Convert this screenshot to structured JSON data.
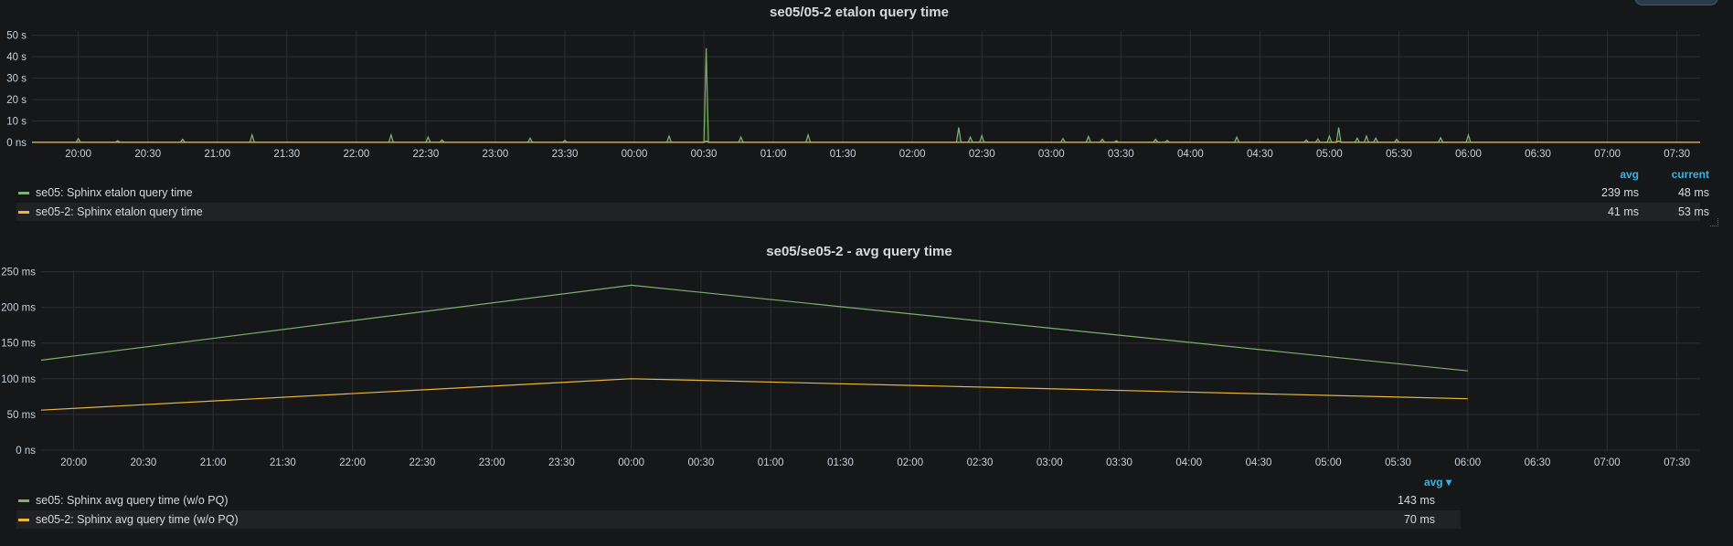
{
  "colors": {
    "series_green": "#7eb26d",
    "series_yellow": "#eab839",
    "grid": "#2c2e31",
    "axis_text": "#c7d0d9",
    "legend_header": "#33b5e5"
  },
  "panel1": {
    "title": "se05/05-2 etalon query time",
    "legend": {
      "headers": {
        "avg": "avg",
        "current": "current"
      },
      "rows": [
        {
          "label": "se05: Sphinx etalon query time",
          "avg": "239 ms",
          "current": "48 ms"
        },
        {
          "label": "se05-2: Sphinx etalon query time",
          "avg": "41 ms",
          "current": "53 ms"
        }
      ]
    }
  },
  "panel2": {
    "title": "se05/se05-2 - avg query time",
    "legend": {
      "headers": {
        "avg": "avg ▾"
      },
      "rows": [
        {
          "label": "se05: Sphinx avg query time (w/o PQ)",
          "avg": "143 ms"
        },
        {
          "label": "se05-2: Sphinx avg query time (w/o PQ)",
          "avg": "70 ms"
        }
      ]
    }
  },
  "chart_data": [
    {
      "type": "line",
      "title": "se05/05-2 etalon query time",
      "x_ticks": [
        "20:00",
        "20:30",
        "21:00",
        "21:30",
        "22:00",
        "22:30",
        "23:00",
        "23:30",
        "00:00",
        "00:30",
        "01:00",
        "01:30",
        "02:00",
        "02:30",
        "03:00",
        "03:30",
        "04:00",
        "04:30",
        "05:00",
        "05:30",
        "06:00",
        "06:30",
        "07:00",
        "07:30"
      ],
      "y_ticks": [
        "0 ns",
        "10 s",
        "20 s",
        "30 s",
        "40 s",
        "50 s"
      ],
      "xlim": [
        "19:40",
        "07:40"
      ],
      "ylim": [
        0,
        52
      ],
      "yunit": "s",
      "grid": true,
      "series": [
        {
          "name": "se05: Sphinx etalon query time",
          "color": "#7eb26d",
          "spikes": [
            [
              "20:00",
              1.8
            ],
            [
              "20:17",
              0.8
            ],
            [
              "20:45",
              1.5
            ],
            [
              "21:15",
              3.5
            ],
            [
              "22:15",
              3.5
            ],
            [
              "22:31",
              2.5
            ],
            [
              "22:37",
              1.2
            ],
            [
              "23:15",
              2.0
            ],
            [
              "23:30",
              1.0
            ],
            [
              "00:15",
              3.0
            ],
            [
              "00:31",
              44
            ],
            [
              "00:46",
              2.5
            ],
            [
              "01:15",
              3.5
            ],
            [
              "02:20",
              7.0
            ],
            [
              "02:25",
              2.5
            ],
            [
              "02:30",
              3.2
            ],
            [
              "03:05",
              1.8
            ],
            [
              "03:16",
              2.8
            ],
            [
              "03:22",
              1.5
            ],
            [
              "03:28",
              0.8
            ],
            [
              "03:45",
              1.5
            ],
            [
              "03:50",
              1.0
            ],
            [
              "04:20",
              2.5
            ],
            [
              "04:50",
              1.2
            ],
            [
              "04:55",
              1.6
            ],
            [
              "05:00",
              3.0
            ],
            [
              "05:04",
              7.0
            ],
            [
              "05:12",
              2.0
            ],
            [
              "05:16",
              3.0
            ],
            [
              "05:20",
              2.0
            ],
            [
              "05:29",
              1.5
            ],
            [
              "05:48",
              2.2
            ],
            [
              "06:00",
              3.5
            ]
          ]
        },
        {
          "name": "se05-2: Sphinx etalon query time",
          "color": "#eab839",
          "spikes": [
            [
              "00:31",
              0.6
            ],
            [
              "05:04",
              0.7
            ]
          ]
        }
      ]
    },
    {
      "type": "line",
      "title": "se05/se05-2 - avg query time",
      "x_ticks": [
        "20:00",
        "20:30",
        "21:00",
        "21:30",
        "22:00",
        "22:30",
        "23:00",
        "23:30",
        "00:00",
        "00:30",
        "01:00",
        "01:30",
        "02:00",
        "02:30",
        "03:00",
        "03:30",
        "04:00",
        "04:30",
        "05:00",
        "05:30",
        "06:00",
        "06:30",
        "07:00",
        "07:30"
      ],
      "y_ticks": [
        "0 ns",
        "50 ms",
        "100 ms",
        "150 ms",
        "200 ms",
        "250 ms"
      ],
      "xlim": [
        "19:46",
        "07:40"
      ],
      "ylim": [
        0,
        252
      ],
      "yunit": "ms",
      "grid": true,
      "series": [
        {
          "name": "se05: Sphinx avg query time (w/o PQ)",
          "color": "#7eb26d",
          "x": [
            "19:46",
            "00:00",
            "06:00"
          ],
          "y": [
            126,
            231,
            111
          ]
        },
        {
          "name": "se05-2: Sphinx avg query time (w/o PQ)",
          "color": "#eab839",
          "x": [
            "19:46",
            "00:00",
            "06:00"
          ],
          "y": [
            56,
            100,
            72
          ]
        }
      ]
    }
  ]
}
